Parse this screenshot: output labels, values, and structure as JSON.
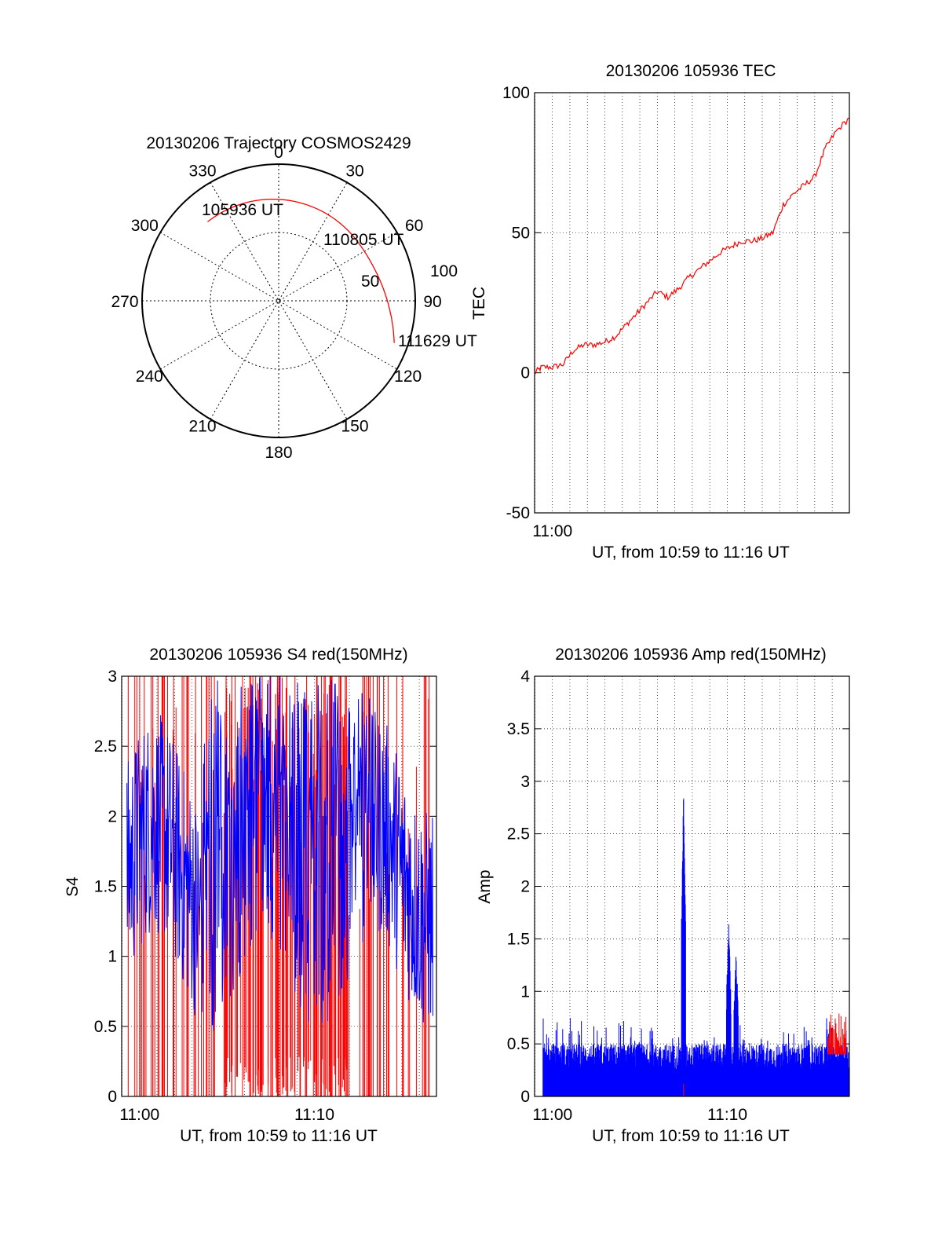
{
  "chart_data": [
    {
      "type": "polar",
      "title": "20130206 Trajectory COSMOS2429",
      "angle_labels": [
        "0",
        "30",
        "60",
        "90",
        "120",
        "150",
        "180",
        "210",
        "240",
        "270",
        "300",
        "330"
      ],
      "radial_labels": [
        "50",
        "100"
      ],
      "trajectory_points": [
        {
          "label": "105936 UT",
          "azimuth": 318,
          "elevation": 20
        },
        {
          "label": "110805 UT",
          "azimuth": 54,
          "elevation": 25
        },
        {
          "label": "111629 UT",
          "azimuth": 110,
          "elevation": 9
        }
      ],
      "series": [
        {
          "name": "",
          "color": "#ff0000"
        }
      ]
    },
    {
      "type": "line",
      "title": "20130206 105936 TEC",
      "xlabel": "UT, from 10:59 to 11:16 UT",
      "ylabel": "TEC",
      "xlim": [
        10.983,
        11.283
      ],
      "ylim": [
        -50,
        100
      ],
      "yticks": [
        "-50",
        "0",
        "50",
        "100"
      ],
      "xticks": [
        {
          "label": "11:00",
          "value": 11.0
        }
      ],
      "grid": true,
      "series": [
        {
          "name": "",
          "color": "#ff0000",
          "x": [
            10.983,
            10.99,
            11.0,
            11.01,
            11.02,
            11.03,
            11.04,
            11.05,
            11.06,
            11.07,
            11.08,
            11.09,
            11.1,
            11.11,
            11.12,
            11.13,
            11.14,
            11.15,
            11.16,
            11.17,
            11.18,
            11.19,
            11.2,
            11.21,
            11.22,
            11.23,
            11.24,
            11.25,
            11.26,
            11.27,
            11.283
          ],
          "y": [
            0,
            2,
            2,
            3,
            8,
            10,
            10,
            11,
            13,
            17,
            21,
            25,
            29,
            27,
            30,
            34,
            37,
            40,
            43,
            45,
            47,
            47,
            48,
            50,
            60,
            64,
            67,
            70,
            80,
            86,
            91
          ]
        }
      ]
    },
    {
      "type": "line",
      "title": "20130206 105936 S4 red(150MHz)",
      "xlabel": "UT, from 10:59 to 11:16 UT",
      "ylabel": "S4",
      "xlim": [
        10.983,
        11.283
      ],
      "ylim": [
        0,
        3
      ],
      "yticks": [
        "0",
        "0.5",
        "1",
        "1.5",
        "2",
        "2.5",
        "3"
      ],
      "xticks": [
        {
          "label": "11:00",
          "value": 11.0
        },
        {
          "label": "11:10",
          "value": 11.1667
        }
      ],
      "grid": true,
      "series": [
        {
          "name": "",
          "color": "#ff0000"
        },
        {
          "name": "",
          "color": "#0000ff"
        }
      ]
    },
    {
      "type": "line",
      "title": "20130206 105936 Amp red(150MHz)",
      "xlabel": "UT, from 10:59 to 11:16 UT",
      "ylabel": "Amp",
      "xlim": [
        10.983,
        11.283
      ],
      "ylim": [
        0,
        4
      ],
      "yticks": [
        "0",
        "0.5",
        "1",
        "1.5",
        "2",
        "2.5",
        "3",
        "3.5",
        "4"
      ],
      "xticks": [
        {
          "label": "11:00",
          "value": 11.0
        },
        {
          "label": "11:10",
          "value": 11.1667
        }
      ],
      "grid": true,
      "peaks": [
        {
          "x": 11.125,
          "y": 2.95
        },
        {
          "x": 11.168,
          "y": 1.75
        },
        {
          "x": 11.175,
          "y": 1.45
        }
      ],
      "series": [
        {
          "name": "",
          "color": "#ff0000"
        },
        {
          "name": "",
          "color": "#0000ff"
        }
      ]
    }
  ]
}
